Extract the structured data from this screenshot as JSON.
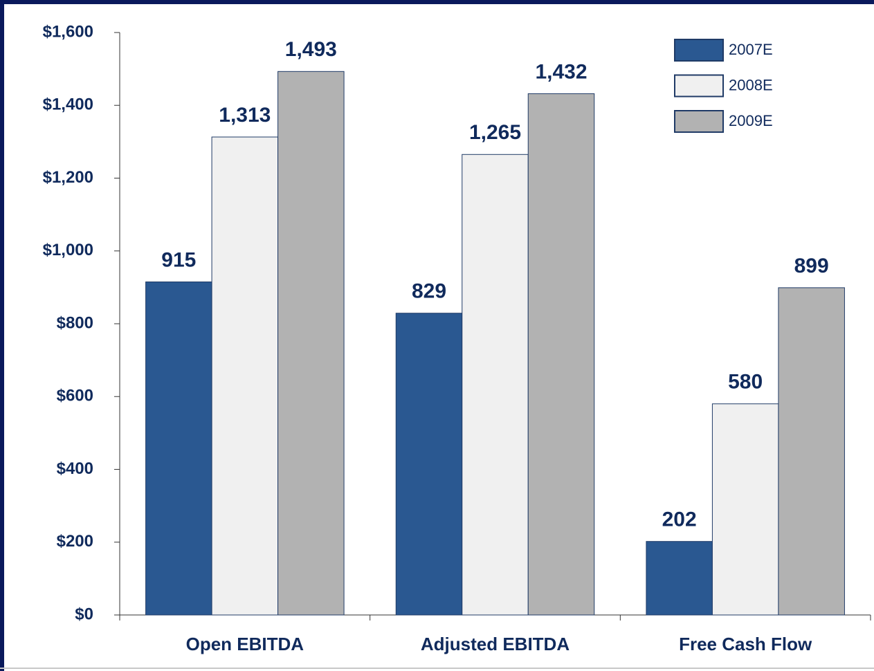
{
  "chart_data": {
    "type": "bar",
    "categories": [
      "Open EBITDA",
      "Adjusted EBITDA",
      "Free Cash Flow"
    ],
    "series": [
      {
        "name": "2007E",
        "color": "#2a5891",
        "values": [
          915,
          829,
          202
        ],
        "value_labels": [
          "915",
          "829",
          "202"
        ]
      },
      {
        "name": "2008E",
        "color": "#f0f0f0",
        "values": [
          1313,
          1265,
          580
        ],
        "value_labels": [
          "1,313",
          "1,265",
          "580"
        ]
      },
      {
        "name": "2009E",
        "color": "#b2b2b2",
        "values": [
          1493,
          1432,
          899
        ],
        "value_labels": [
          "1,493",
          "1,432",
          "899"
        ]
      }
    ],
    "ylim": [
      0,
      1600
    ],
    "yticks": [
      {
        "value": 0,
        "label": "$0"
      },
      {
        "value": 200,
        "label": "$200"
      },
      {
        "value": 400,
        "label": "$400"
      },
      {
        "value": 600,
        "label": "$600"
      },
      {
        "value": 800,
        "label": "$800"
      },
      {
        "value": 1000,
        "label": "$1,000"
      },
      {
        "value": 1200,
        "label": "$1,200"
      },
      {
        "value": 1400,
        "label": "$1,400"
      },
      {
        "value": 1600,
        "label": "$1,600"
      }
    ],
    "grid": false,
    "legend": "upper right"
  }
}
